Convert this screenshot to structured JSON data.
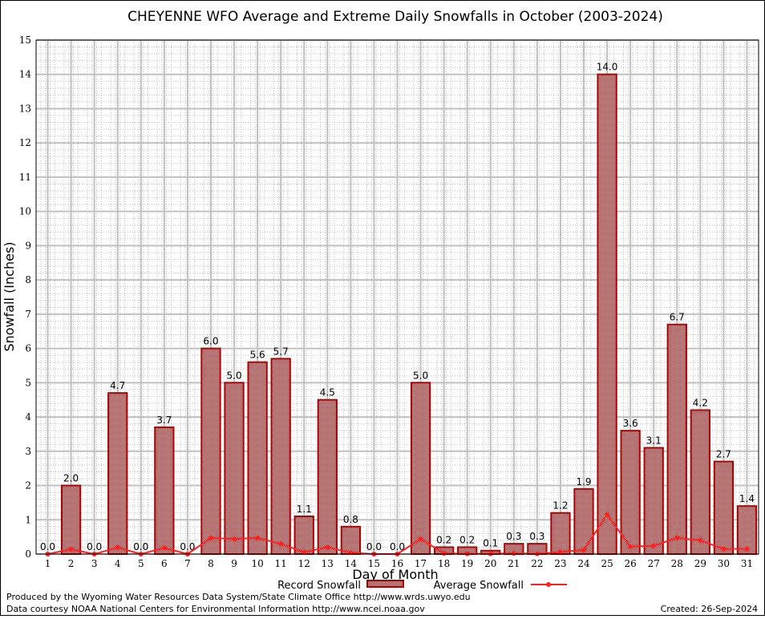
{
  "chart_data": {
    "type": "bar",
    "title": "CHEYENNE WFO Average and Extreme Daily Snowfalls in October (2003-2024)",
    "xlabel": "Day of Month",
    "ylabel": "Snowfall (Inches)",
    "ylim": [
      0,
      15
    ],
    "grid": true,
    "legend_placement": "bottom",
    "categories": [
      "1",
      "2",
      "3",
      "4",
      "5",
      "6",
      "7",
      "8",
      "9",
      "10",
      "11",
      "12",
      "13",
      "14",
      "15",
      "16",
      "17",
      "18",
      "19",
      "20",
      "21",
      "22",
      "23",
      "24",
      "25",
      "26",
      "27",
      "28",
      "29",
      "30",
      "31"
    ],
    "series": [
      {
        "name": "Record Snowfall",
        "type": "bar",
        "color": "#aa0000",
        "values": [
          0.0,
          2.0,
          0.0,
          4.7,
          0.0,
          3.7,
          0.0,
          6.0,
          5.0,
          5.6,
          5.7,
          1.1,
          4.5,
          0.8,
          0.0,
          0.0,
          5.0,
          0.2,
          0.2,
          0.1,
          0.3,
          0.3,
          1.2,
          1.9,
          14.0,
          3.6,
          3.1,
          6.7,
          4.2,
          2.7,
          1.4
        ],
        "labels": [
          "0.0",
          "2.0",
          "0.0",
          "4.7",
          "0.0",
          "3.7",
          "0.0",
          "6.0",
          "5.0",
          "5.6",
          "5.7",
          "1.1",
          "4.5",
          "0.8",
          "0.0",
          "0.0",
          "5.0",
          "0.2",
          "0.2",
          "0.1",
          "0.3",
          "0.3",
          "1.2",
          "1.9",
          "14.0",
          "3.6",
          "3.1",
          "6.7",
          "4.2",
          "2.7",
          "1.4"
        ]
      },
      {
        "name": "Average Snowfall",
        "type": "line",
        "color": "#ff2020",
        "values": [
          0.0,
          0.14,
          0.0,
          0.19,
          0.0,
          0.18,
          0.0,
          0.47,
          0.44,
          0.47,
          0.3,
          0.05,
          0.2,
          0.04,
          0.0,
          0.0,
          0.44,
          0.02,
          0.01,
          0.01,
          0.02,
          0.01,
          0.06,
          0.12,
          1.15,
          0.22,
          0.24,
          0.47,
          0.4,
          0.15,
          0.15
        ]
      }
    ],
    "yticks": [
      "0",
      "1",
      "2",
      "3",
      "4",
      "5",
      "6",
      "7",
      "8",
      "9",
      "10",
      "11",
      "12",
      "13",
      "14",
      "15"
    ]
  },
  "footer": {
    "line1": "Produced by the Wyoming Water Resources Data System/State Climate Office http://www.wrds.uwyo.edu",
    "line2": "Data courtesy NOAA National Centers for Environmental Information http://www.ncei.noaa.gov",
    "created": "Created: 26-Sep-2024"
  }
}
